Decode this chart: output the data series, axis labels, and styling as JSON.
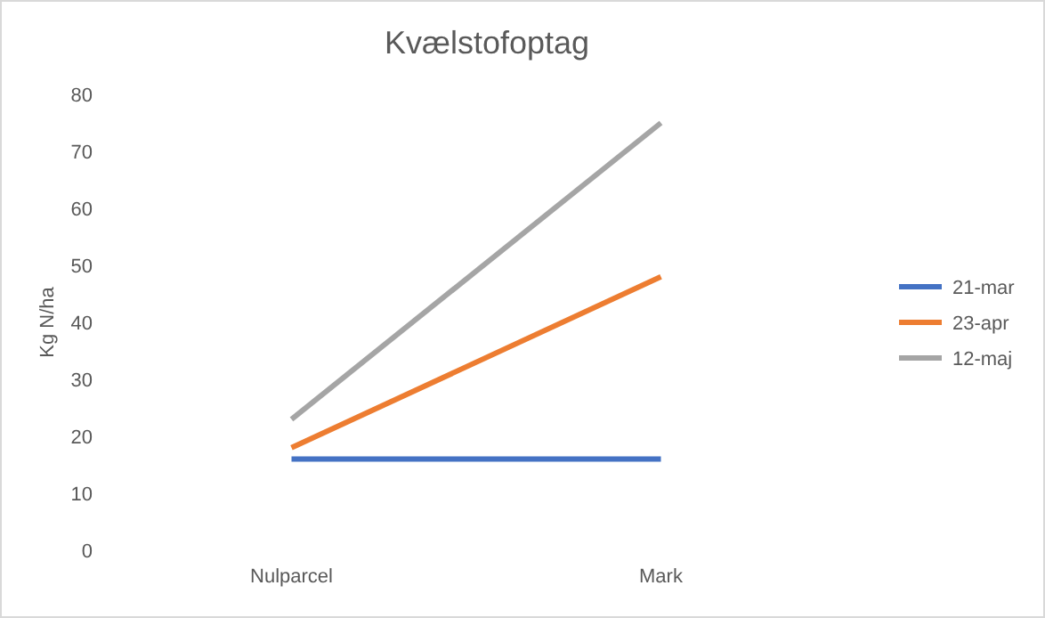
{
  "chart_data": {
    "type": "line",
    "title": "Kvælstofoptag",
    "ylabel": "Kg N/ha",
    "categories": [
      "Nulparcel",
      "Mark"
    ],
    "series": [
      {
        "name": "21-mar",
        "color": "#4472c4",
        "values": [
          16,
          16
        ]
      },
      {
        "name": "23-apr",
        "color": "#ed7d31",
        "values": [
          18,
          48
        ]
      },
      {
        "name": "12-maj",
        "color": "#a5a5a5",
        "values": [
          23,
          75
        ]
      }
    ],
    "ylim": [
      0,
      80
    ],
    "yticks": [
      0,
      10,
      20,
      30,
      40,
      50,
      60,
      70,
      80
    ],
    "grid": false,
    "legend": "right",
    "marker": "none",
    "line_style": "solid"
  }
}
